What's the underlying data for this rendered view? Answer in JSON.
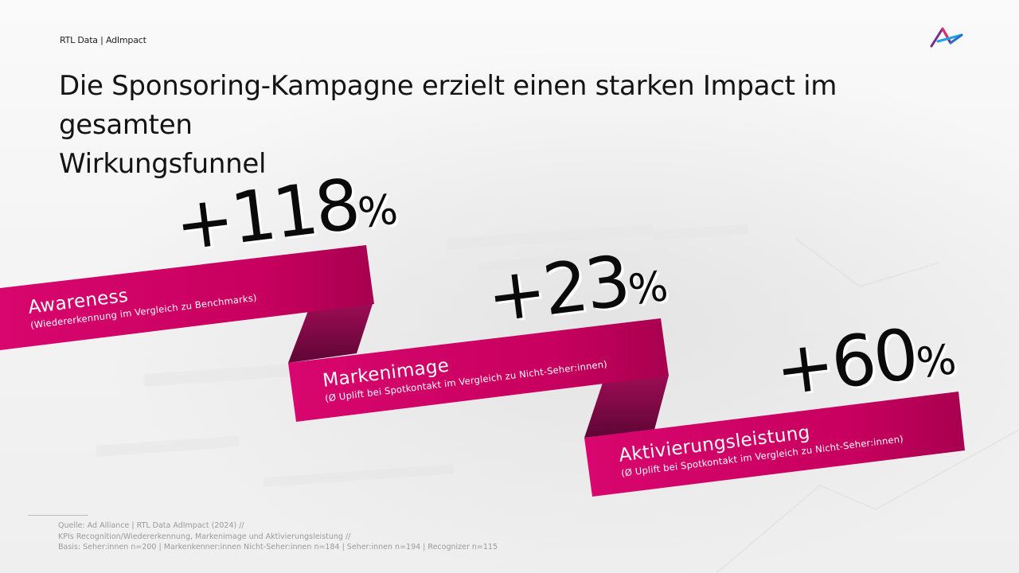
{
  "header": {
    "label": "RTL Data | AdImpact",
    "logo_icon": "ad-alliance-logo-icon"
  },
  "title": {
    "line1": "Die Sponsoring-Kampagne erzielt einen starken Impact im gesamten",
    "line2": "Wirkungsfunnel"
  },
  "ribbons": [
    {
      "value": "+118",
      "unit": "%",
      "label": "Awareness",
      "sub": "(Wiedererkennung im Vergleich zu Benchmarks)"
    },
    {
      "value": "+23",
      "unit": "%",
      "label": "Markenimage",
      "sub": "(Ø Uplift bei Spotkontakt im Vergleich zu Nicht-Seher:innen)"
    },
    {
      "value": "+60",
      "unit": "%",
      "label": "Aktivierungsleistung",
      "sub": "(Ø Uplift bei Spotkontakt im Vergleich zu Nicht-Seher:innen)"
    }
  ],
  "colors": {
    "ribbon": "#cc0066",
    "ribbon_dark": "#8a0a4a",
    "accent_blue": "#1fa0e0",
    "accent_purple": "#7a2a8a"
  },
  "footer": {
    "line1": "Quelle: Ad Alliance | RTL Data AdImpact (2024) //",
    "line2": "KPIs Recognition/Wiedererkennung, Markenimage und Aktivierungsleistung //",
    "line3": "Basis: Seher:innen n=200 | Markenkenner:innen Nicht-Seher:innen n=184 | Seher:innen n=194 | Recognizer n=115"
  }
}
